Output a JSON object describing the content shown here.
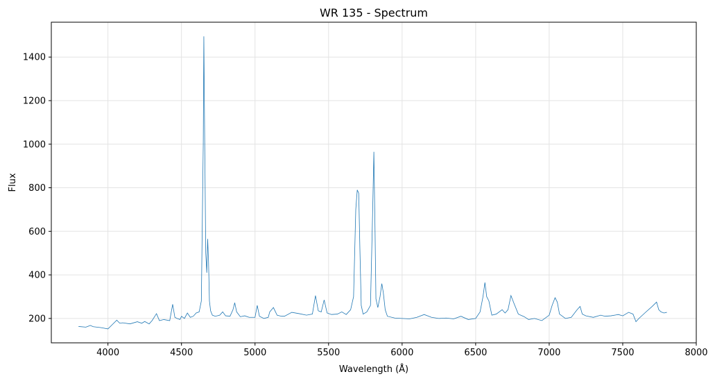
{
  "chart_data": {
    "type": "line",
    "title": "WR 135 - Spectrum",
    "xlabel": "Wavelength (Å)",
    "ylabel": "Flux",
    "xlim": [
      3615,
      8000
    ],
    "ylim": [
      88,
      1560
    ],
    "grid": true,
    "color": "#1f77b4",
    "xticks": [
      4000,
      4500,
      5000,
      5500,
      6000,
      6500,
      7000,
      7500,
      8000
    ],
    "yticks": [
      200,
      400,
      600,
      800,
      1000,
      1200,
      1400
    ],
    "series": [
      {
        "x": [
          3800,
          3850,
          3880,
          3900,
          3950,
          4000,
          4030,
          4060,
          4080,
          4100,
          4150,
          4200,
          4230,
          4250,
          4280,
          4300,
          4330,
          4350,
          4380,
          4420,
          4440,
          4455,
          4470,
          4490,
          4500,
          4520,
          4540,
          4560,
          4580,
          4600,
          4620,
          4635,
          4648,
          4652,
          4658,
          4665,
          4672,
          4678,
          4684,
          4690,
          4698,
          4710,
          4730,
          4760,
          4780,
          4800,
          4830,
          4850,
          4862,
          4875,
          4900,
          4930,
          4960,
          5000,
          5015,
          5030,
          5060,
          5090,
          5100,
          5125,
          5150,
          5180,
          5200,
          5250,
          5300,
          5350,
          5390,
          5411,
          5430,
          5450,
          5470,
          5490,
          5520,
          5560,
          5590,
          5620,
          5650,
          5670,
          5685,
          5695,
          5705,
          5713,
          5722,
          5735,
          5760,
          5785,
          5800,
          5808,
          5816,
          5822,
          5835,
          5850,
          5862,
          5872,
          5885,
          5900,
          5950,
          6000,
          6050,
          6100,
          6150,
          6200,
          6250,
          6300,
          6350,
          6400,
          6450,
          6500,
          6530,
          6550,
          6563,
          6575,
          6590,
          6610,
          6640,
          6680,
          6700,
          6720,
          6740,
          6760,
          6790,
          6830,
          6860,
          6900,
          6950,
          7000,
          7020,
          7040,
          7055,
          7070,
          7090,
          7110,
          7150,
          7190,
          7210,
          7225,
          7250,
          7300,
          7350,
          7380,
          7420,
          7470,
          7500,
          7540,
          7570,
          7590,
          7610,
          7650,
          7700,
          7730,
          7745,
          7760,
          7780,
          7800
        ],
        "values": [
          163,
          160,
          168,
          162,
          158,
          152,
          172,
          192,
          178,
          180,
          175,
          185,
          178,
          186,
          175,
          190,
          222,
          190,
          195,
          190,
          265,
          205,
          200,
          195,
          210,
          200,
          225,
          205,
          210,
          225,
          230,
          280,
          1000,
          1495,
          1000,
          500,
          410,
          565,
          460,
          280,
          235,
          215,
          210,
          215,
          230,
          212,
          210,
          240,
          272,
          230,
          208,
          212,
          205,
          205,
          260,
          210,
          200,
          205,
          230,
          250,
          215,
          210,
          210,
          228,
          222,
          215,
          220,
          305,
          235,
          230,
          285,
          225,
          218,
          220,
          230,
          218,
          240,
          300,
          700,
          790,
          775,
          520,
          260,
          220,
          230,
          260,
          700,
          965,
          600,
          290,
          250,
          300,
          360,
          320,
          240,
          210,
          202,
          200,
          198,
          205,
          218,
          205,
          200,
          202,
          198,
          210,
          195,
          200,
          230,
          300,
          365,
          300,
          280,
          215,
          220,
          240,
          225,
          240,
          305,
          270,
          220,
          208,
          195,
          200,
          190,
          215,
          260,
          295,
          275,
          220,
          210,
          200,
          205,
          240,
          255,
          220,
          212,
          205,
          215,
          210,
          212,
          218,
          212,
          228,
          220,
          185,
          200,
          225,
          255,
          275,
          240,
          230,
          225,
          228
        ]
      }
    ]
  }
}
